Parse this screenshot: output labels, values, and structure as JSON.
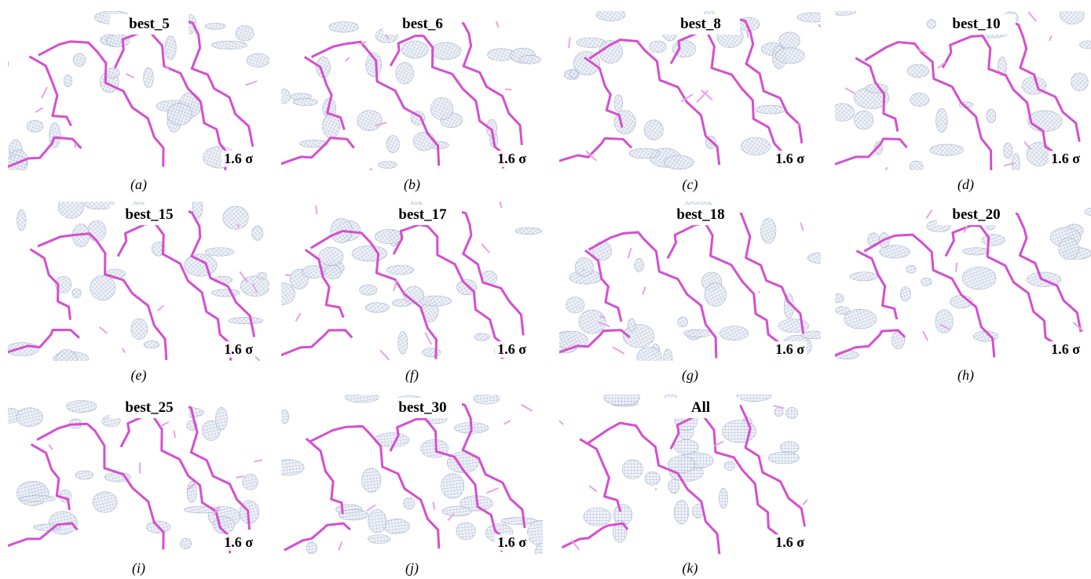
{
  "panels": [
    {
      "title": "best_5",
      "sigma": "1.6 σ",
      "caption": "(a)"
    },
    {
      "title": "best_6",
      "sigma": "1.6 σ",
      "caption": "(b)"
    },
    {
      "title": "best_8",
      "sigma": "1.6 σ",
      "caption": "(c)"
    },
    {
      "title": "best_10",
      "sigma": "1.6 σ",
      "caption": "(d)"
    },
    {
      "title": "best_15",
      "sigma": "1.6 σ",
      "caption": "(e)"
    },
    {
      "title": "best_17",
      "sigma": "1.6 σ",
      "caption": "(f)"
    },
    {
      "title": "best_18",
      "sigma": "1.6 σ",
      "caption": "(g)"
    },
    {
      "title": "best_20",
      "sigma": "1.6 σ",
      "caption": "(h)"
    },
    {
      "title": "best_25",
      "sigma": "1.6 σ",
      "caption": "(i)"
    },
    {
      "title": "best_30",
      "sigma": "1.6 σ",
      "caption": "(j)"
    },
    {
      "title": "All",
      "sigma": "1.6 σ",
      "caption": "(k)"
    }
  ]
}
